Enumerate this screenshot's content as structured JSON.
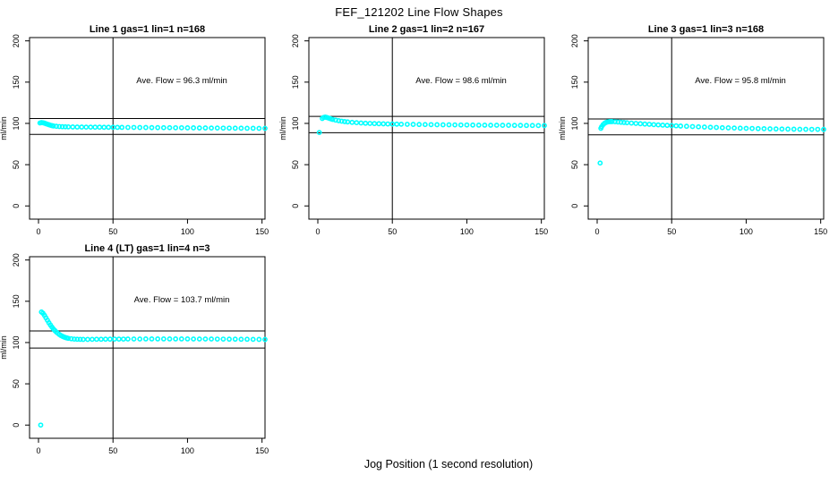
{
  "page": {
    "title": "FEF_121202  Line Flow Shapes",
    "xlabel": "Jog Position (1 second resolution)"
  },
  "colors": {
    "marker": "#00FFFF",
    "axis": "#000000",
    "background": "#FFFFFF"
  },
  "chart_data": [
    {
      "type": "scatter",
      "title": "Line 1 gas=1 lin=1 n=168",
      "annotation": "Ave. Flow =  96.3  ml/min",
      "ave_flow": 96.3,
      "ylabel": "ml/min",
      "x_ticks": [
        0,
        50,
        100,
        150
      ],
      "y_ticks": [
        0,
        50,
        100,
        150,
        200
      ],
      "xlim": [
        -6,
        152
      ],
      "ylim": [
        -16,
        204
      ],
      "vline_x": 50,
      "hlines": [
        105.9,
        86.7
      ],
      "legend": "none",
      "grid": false,
      "points": [
        [
          1,
          100.5
        ],
        [
          2,
          101
        ],
        [
          3,
          100.8
        ],
        [
          4,
          100.3
        ],
        [
          5,
          99.6
        ],
        [
          6,
          99
        ],
        [
          7,
          98.4
        ],
        [
          8,
          97.8
        ],
        [
          9,
          97.3
        ],
        [
          10,
          96.9
        ],
        [
          12,
          96.5
        ],
        [
          14,
          96.2
        ],
        [
          16,
          96.0
        ],
        [
          18,
          95.9
        ],
        [
          20,
          95.8
        ],
        [
          23,
          95.7
        ],
        [
          26,
          95.6
        ],
        [
          29,
          95.6
        ],
        [
          32,
          95.5
        ],
        [
          35,
          95.5
        ],
        [
          38,
          95.4
        ],
        [
          41,
          95.4
        ],
        [
          44,
          95.3
        ],
        [
          47,
          95.3
        ],
        [
          50,
          95.3
        ],
        [
          53,
          95.2
        ],
        [
          56,
          95.2
        ],
        [
          60,
          95.1
        ],
        [
          64,
          95.1
        ],
        [
          68,
          95.0
        ],
        [
          72,
          95.0
        ],
        [
          76,
          94.9
        ],
        [
          80,
          94.9
        ],
        [
          84,
          94.8
        ],
        [
          88,
          94.8
        ],
        [
          92,
          94.7
        ],
        [
          96,
          94.7
        ],
        [
          100,
          94.6
        ],
        [
          104,
          94.6
        ],
        [
          108,
          94.5
        ],
        [
          112,
          94.5
        ],
        [
          116,
          94.4
        ],
        [
          120,
          94.4
        ],
        [
          124,
          94.3
        ],
        [
          128,
          94.3
        ],
        [
          132,
          94.2
        ],
        [
          136,
          94.2
        ],
        [
          140,
          94.1
        ],
        [
          144,
          94.1
        ],
        [
          148,
          94.0
        ],
        [
          152,
          94.0
        ]
      ]
    },
    {
      "type": "scatter",
      "title": "Line 2 gas=1 lin=2 n=167",
      "annotation": "Ave. Flow =  98.6  ml/min",
      "ave_flow": 98.6,
      "ylabel": "ml/min",
      "x_ticks": [
        0,
        50,
        100,
        150
      ],
      "y_ticks": [
        0,
        50,
        100,
        150,
        200
      ],
      "xlim": [
        -6,
        152
      ],
      "ylim": [
        -16,
        204
      ],
      "vline_x": 50,
      "hlines": [
        108.5,
        88.7
      ],
      "legend": "none",
      "grid": false,
      "points": [
        [
          1,
          89
        ],
        [
          3,
          106
        ],
        [
          4,
          107.3
        ],
        [
          5,
          107.6
        ],
        [
          6,
          107.2
        ],
        [
          7,
          106.6
        ],
        [
          8,
          106
        ],
        [
          9,
          105.4
        ],
        [
          10,
          104.8
        ],
        [
          12,
          104
        ],
        [
          14,
          103.3
        ],
        [
          16,
          102.7
        ],
        [
          18,
          102.2
        ],
        [
          20,
          101.8
        ],
        [
          23,
          101.3
        ],
        [
          26,
          100.9
        ],
        [
          29,
          100.5
        ],
        [
          32,
          100.2
        ],
        [
          35,
          100.0
        ],
        [
          38,
          99.8
        ],
        [
          41,
          99.6
        ],
        [
          44,
          99.5
        ],
        [
          47,
          99.3
        ],
        [
          50,
          99.2
        ],
        [
          53,
          99.1
        ],
        [
          56,
          99.0
        ],
        [
          60,
          98.9
        ],
        [
          64,
          98.8
        ],
        [
          68,
          98.7
        ],
        [
          72,
          98.6
        ],
        [
          76,
          98.5
        ],
        [
          80,
          98.4
        ],
        [
          84,
          98.3
        ],
        [
          88,
          98.3
        ],
        [
          92,
          98.2
        ],
        [
          96,
          98.1
        ],
        [
          100,
          98.1
        ],
        [
          104,
          98.0
        ],
        [
          108,
          97.9
        ],
        [
          112,
          97.9
        ],
        [
          116,
          97.8
        ],
        [
          120,
          97.8
        ],
        [
          124,
          97.7
        ],
        [
          128,
          97.7
        ],
        [
          132,
          97.6
        ],
        [
          136,
          97.6
        ],
        [
          140,
          97.5
        ],
        [
          144,
          97.5
        ],
        [
          148,
          97.4
        ],
        [
          152,
          97.4
        ]
      ]
    },
    {
      "type": "scatter",
      "title": "Line 3 gas=1 lin=3 n=168",
      "annotation": "Ave. Flow =  95.8  ml/min",
      "ave_flow": 95.8,
      "ylabel": "ml/min",
      "x_ticks": [
        0,
        50,
        100,
        150
      ],
      "y_ticks": [
        0,
        50,
        100,
        150,
        200
      ],
      "xlim": [
        -6,
        152
      ],
      "ylim": [
        -16,
        204
      ],
      "vline_x": 50,
      "hlines": [
        105.4,
        86.2
      ],
      "legend": "none",
      "grid": false,
      "points": [
        [
          2,
          52
        ],
        [
          2.5,
          94
        ],
        [
          3,
          96
        ],
        [
          4,
          98.5
        ],
        [
          5,
          100.2
        ],
        [
          6,
          101.2
        ],
        [
          7,
          101.8
        ],
        [
          8,
          102.1
        ],
        [
          9,
          102.2
        ],
        [
          10,
          102.2
        ],
        [
          12,
          102
        ],
        [
          14,
          101.7
        ],
        [
          16,
          101.4
        ],
        [
          18,
          101.1
        ],
        [
          20,
          100.8
        ],
        [
          23,
          100.4
        ],
        [
          26,
          100
        ],
        [
          29,
          99.6
        ],
        [
          32,
          99.2
        ],
        [
          35,
          98.9
        ],
        [
          38,
          98.5
        ],
        [
          41,
          98.2
        ],
        [
          44,
          97.9
        ],
        [
          47,
          97.6
        ],
        [
          50,
          97.3
        ],
        [
          53,
          97.1
        ],
        [
          56,
          96.8
        ],
        [
          60,
          96.5
        ],
        [
          64,
          96.2
        ],
        [
          68,
          95.9
        ],
        [
          72,
          95.6
        ],
        [
          76,
          95.3
        ],
        [
          80,
          95.1
        ],
        [
          84,
          94.8
        ],
        [
          88,
          94.6
        ],
        [
          92,
          94.4
        ],
        [
          96,
          94.2
        ],
        [
          100,
          94.0
        ],
        [
          104,
          93.9
        ],
        [
          108,
          93.7
        ],
        [
          112,
          93.6
        ],
        [
          116,
          93.4
        ],
        [
          120,
          93.3
        ],
        [
          124,
          93.2
        ],
        [
          128,
          93.1
        ],
        [
          132,
          93.0
        ],
        [
          136,
          92.9
        ],
        [
          140,
          92.9
        ],
        [
          144,
          92.8
        ],
        [
          148,
          92.8
        ],
        [
          152,
          92.7
        ]
      ]
    },
    {
      "type": "scatter",
      "title": "Line 4 (LT) gas=1 lin=4 n=3",
      "annotation": "Ave. Flow =  103.7  ml/min",
      "ave_flow": 103.7,
      "ylabel": "ml/min",
      "x_ticks": [
        0,
        50,
        100,
        150
      ],
      "y_ticks": [
        0,
        50,
        100,
        150,
        200
      ],
      "xlim": [
        -6,
        152
      ],
      "ylim": [
        -16,
        204
      ],
      "vline_x": 50,
      "hlines": [
        114.1,
        93.3
      ],
      "legend": "none",
      "grid": false,
      "points": [
        [
          1.5,
          0
        ],
        [
          2,
          137
        ],
        [
          3,
          135.5
        ],
        [
          4,
          133
        ],
        [
          5,
          130
        ],
        [
          6,
          127
        ],
        [
          7,
          124
        ],
        [
          8,
          121.3
        ],
        [
          9,
          118.8
        ],
        [
          10,
          116.5
        ],
        [
          11,
          114.5
        ],
        [
          12,
          112.7
        ],
        [
          13,
          111.2
        ],
        [
          14,
          109.8
        ],
        [
          15,
          108.6
        ],
        [
          16,
          107.6
        ],
        [
          17,
          106.8
        ],
        [
          18,
          106.1
        ],
        [
          19,
          105.6
        ],
        [
          20,
          105.1
        ],
        [
          22,
          104.6
        ],
        [
          24,
          104.2
        ],
        [
          26,
          104.0
        ],
        [
          28,
          103.9
        ],
        [
          30,
          103.8
        ],
        [
          33,
          103.8
        ],
        [
          36,
          103.9
        ],
        [
          39,
          104.0
        ],
        [
          42,
          104.0
        ],
        [
          45,
          104.1
        ],
        [
          48,
          104.1
        ],
        [
          51,
          104.2
        ],
        [
          54,
          104.2
        ],
        [
          57,
          104.2
        ],
        [
          60,
          104.3
        ],
        [
          64,
          104.3
        ],
        [
          68,
          104.3
        ],
        [
          72,
          104.4
        ],
        [
          76,
          104.4
        ],
        [
          80,
          104.4
        ],
        [
          84,
          104.4
        ],
        [
          88,
          104.4
        ],
        [
          92,
          104.4
        ],
        [
          96,
          104.4
        ],
        [
          100,
          104.4
        ],
        [
          104,
          104.3
        ],
        [
          108,
          104.3
        ],
        [
          112,
          104.3
        ],
        [
          116,
          104.3
        ],
        [
          120,
          104.2
        ],
        [
          124,
          104.2
        ],
        [
          128,
          104.1
        ],
        [
          132,
          104.1
        ],
        [
          136,
          104.0
        ],
        [
          140,
          104.0
        ],
        [
          144,
          103.9
        ],
        [
          148,
          103.8
        ],
        [
          152,
          103.7
        ]
      ]
    }
  ]
}
